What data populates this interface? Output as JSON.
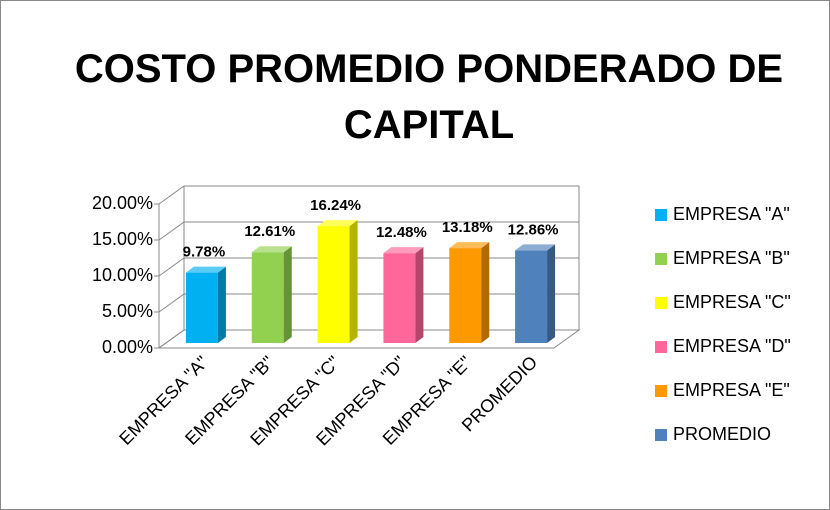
{
  "chart_data": {
    "type": "bar",
    "title": "COSTO PROMEDIO PONDERADO DE CAPITAL",
    "categories": [
      "EMPRESA \"A\"",
      "EMPRESA \"B\"",
      "EMPRESA \"C\"",
      "EMPRESA \"D\"",
      "EMPRESA \"E\"",
      "PROMEDIO"
    ],
    "values": [
      9.78,
      12.61,
      16.24,
      12.48,
      13.18,
      12.86
    ],
    "value_labels": [
      "9.78%",
      "12.61%",
      "16.24%",
      "12.48%",
      "13.18%",
      "12.86%"
    ],
    "colors": [
      "#00b0f0",
      "#92d050",
      "#ffff00",
      "#ff6699",
      "#ff9900",
      "#4f81bd"
    ],
    "ylim": [
      0,
      20
    ],
    "yticks": [
      {
        "value": 0,
        "label": "0.00%"
      },
      {
        "value": 5,
        "label": "5.00%"
      },
      {
        "value": 10,
        "label": "10.00%"
      },
      {
        "value": 15,
        "label": "15.00%"
      },
      {
        "value": 20,
        "label": "20.00%"
      }
    ],
    "grid": true,
    "legend": "right"
  }
}
